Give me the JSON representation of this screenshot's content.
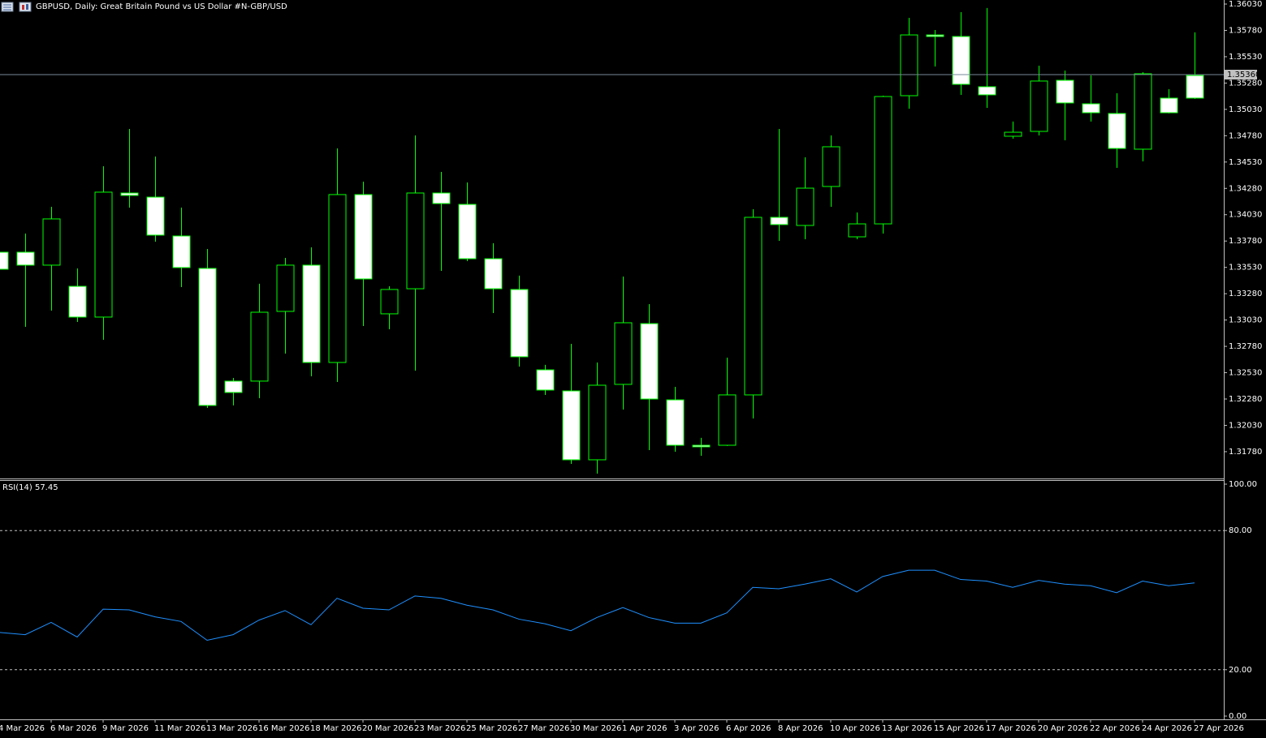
{
  "chart_data": [
    {
      "type": "candlestick",
      "title": "GBPUSD, Daily:  Great Britain Pound vs US Dollar #N-GBP/USD",
      "categories": [
        "4 Mar 2026",
        null,
        "6 Mar 2026",
        null,
        "9 Mar 2026",
        null,
        "11 Mar 2026",
        null,
        "13 Mar 2026",
        null,
        "16 Mar 2026",
        null,
        "18 Mar 2026",
        null,
        "20 Mar 2026",
        null,
        "23 Mar 2026",
        null,
        "25 Mar 2026",
        null,
        "27 Mar 2026",
        null,
        "30 Mar 2026",
        null,
        "1 Apr 2026",
        null,
        "3 Apr 2026",
        null,
        "6 Apr 2026",
        null,
        "8 Apr 2026",
        null,
        "10 Apr 2026",
        null,
        "13 Apr 2026",
        null,
        "15 Apr 2026",
        null,
        "17 Apr 2026",
        null,
        "20 Apr 2026",
        null,
        "22 Apr 2026",
        null,
        "24 Apr 2026",
        null,
        "27 Apr 2026"
      ],
      "open": [
        1.33674,
        1.33674,
        1.33551,
        1.3335,
        1.33058,
        1.34236,
        1.34197,
        1.33828,
        1.3352,
        1.3245,
        1.3245,
        1.33112,
        1.33551,
        1.32627,
        1.34221,
        1.33089,
        1.33327,
        1.34236,
        1.34128,
        1.33612,
        1.3332,
        1.32557,
        1.32357,
        1.31703,
        1.32419,
        1.32996,
        1.32272,
        1.31841,
        1.31841,
        1.32319,
        1.34005,
        1.33928,
        1.34298,
        1.3382,
        1.33943,
        1.3516,
        1.35737,
        1.35722,
        1.35245,
        1.34775,
        1.34821,
        1.35306,
        1.35083,
        1.34991,
        1.34652,
        1.35137,
        1.35352
      ],
      "high": [
        1.3372,
        1.33851,
        1.34105,
        1.3352,
        1.3449,
        1.34844,
        1.34582,
        1.34097,
        1.33705,
        1.3248,
        1.33374,
        1.3362,
        1.3372,
        1.34659,
        1.34344,
        1.3335,
        1.34783,
        1.34436,
        1.34336,
        1.33759,
        1.33451,
        1.32604,
        1.32804,
        1.32627,
        1.33443,
        1.33181,
        1.32396,
        1.31911,
        1.32673,
        1.34082,
        1.34844,
        1.34575,
        1.34783,
        1.34051,
        1.3516,
        1.35899,
        1.35784,
        1.35953,
        1.35992,
        1.34914,
        1.35445,
        1.35399,
        1.35352,
        1.35183,
        1.35383,
        1.35222,
        1.35761
      ],
      "low": [
        1.33466,
        1.32965,
        1.33119,
        1.33012,
        1.32842,
        1.34097,
        1.33774,
        1.33343,
        1.32195,
        1.32219,
        1.32288,
        1.32711,
        1.32496,
        1.32442,
        1.32973,
        1.32942,
        1.3255,
        1.33497,
        1.33589,
        1.33096,
        1.32588,
        1.32319,
        1.31664,
        1.31572,
        1.3218,
        1.31795,
        1.3178,
        1.31741,
        1.31834,
        1.32095,
        1.33782,
        1.33797,
        1.34105,
        1.33797,
        1.33851,
        1.35037,
        1.35437,
        1.35168,
        1.35044,
        1.34752,
        1.34783,
        1.34736,
        1.34914,
        1.34475,
        1.34536,
        1.34991,
        1.35129
      ],
      "close": [
        1.33512,
        1.33551,
        1.3399,
        1.33058,
        1.34244,
        1.34213,
        1.33836,
        1.33528,
        1.32219,
        1.32342,
        1.33104,
        1.33551,
        1.32627,
        1.34221,
        1.3342,
        1.3332,
        1.34236,
        1.34136,
        1.33612,
        1.33327,
        1.32681,
        1.32365,
        1.31703,
        1.32411,
        1.33004,
        1.3228,
        1.31841,
        1.31826,
        1.32319,
        1.34005,
        1.33936,
        1.34282,
        1.34675,
        1.33943,
        1.35152,
        1.35737,
        1.35722,
        1.35268,
        1.35168,
        1.34813,
        1.35299,
        1.35091,
        1.34998,
        1.34659,
        1.35368,
        1.34998,
        1.35137
      ],
      "up_color": "#000000",
      "down_color": "#ffffff",
      "outline_color": "#00ff00",
      "ylim": [
        1.315255,
        1.360685
      ],
      "yticks": [
        {
          "value": 1.3603,
          "label": "1.36030"
        },
        {
          "value": 1.3578,
          "label": "1.35780"
        },
        {
          "value": 1.3553,
          "label": "1.35530"
        },
        {
          "value": 1.3528,
          "label": "1.35280"
        },
        {
          "value": 1.3503,
          "label": "1.35030"
        },
        {
          "value": 1.3478,
          "label": "1.34780"
        },
        {
          "value": 1.3453,
          "label": "1.34530"
        },
        {
          "value": 1.3428,
          "label": "1.34280"
        },
        {
          "value": 1.3403,
          "label": "1.34030"
        },
        {
          "value": 1.3378,
          "label": "1.33780"
        },
        {
          "value": 1.3353,
          "label": "1.33530"
        },
        {
          "value": 1.3328,
          "label": "1.33280"
        },
        {
          "value": 1.3303,
          "label": "1.33030"
        },
        {
          "value": 1.3278,
          "label": "1.32780"
        },
        {
          "value": 1.3253,
          "label": "1.32530"
        },
        {
          "value": 1.3228,
          "label": "1.32280"
        },
        {
          "value": 1.3203,
          "label": "1.32030"
        },
        {
          "value": 1.3178,
          "label": "1.31780"
        }
      ],
      "price_line": {
        "value": 1.3536,
        "label": "1.35360",
        "color": "#778899"
      },
      "grid": false
    },
    {
      "type": "line",
      "title": "RSI(14) 57.45",
      "values": [
        36.1,
        35.1,
        40.4,
        34.1,
        46.1,
        45.8,
        42.8,
        40.8,
        32.7,
        35.1,
        41.4,
        45.5,
        39.4,
        50.8,
        46.5,
        45.8,
        51.8,
        50.8,
        47.8,
        45.8,
        41.8,
        39.8,
        36.8,
        42.5,
        46.8,
        42.5,
        40.1,
        40.1,
        44.5,
        55.5,
        54.9,
        56.9,
        59.2,
        53.5,
        60.2,
        62.9,
        62.9,
        58.9,
        58.2,
        55.5,
        58.5,
        56.9,
        56.2,
        53.2,
        58.2,
        56.2,
        57.45
      ],
      "color": "#1e90ff",
      "ylim": [
        -1.4,
        101.4
      ],
      "yticks": [
        {
          "value": 100,
          "label": "100.00"
        },
        {
          "value": 80,
          "label": "80.00"
        },
        {
          "value": 20,
          "label": "20.00"
        },
        {
          "value": 0,
          "label": "0.00"
        }
      ],
      "levels": [
        80,
        20
      ],
      "grid": false
    }
  ]
}
